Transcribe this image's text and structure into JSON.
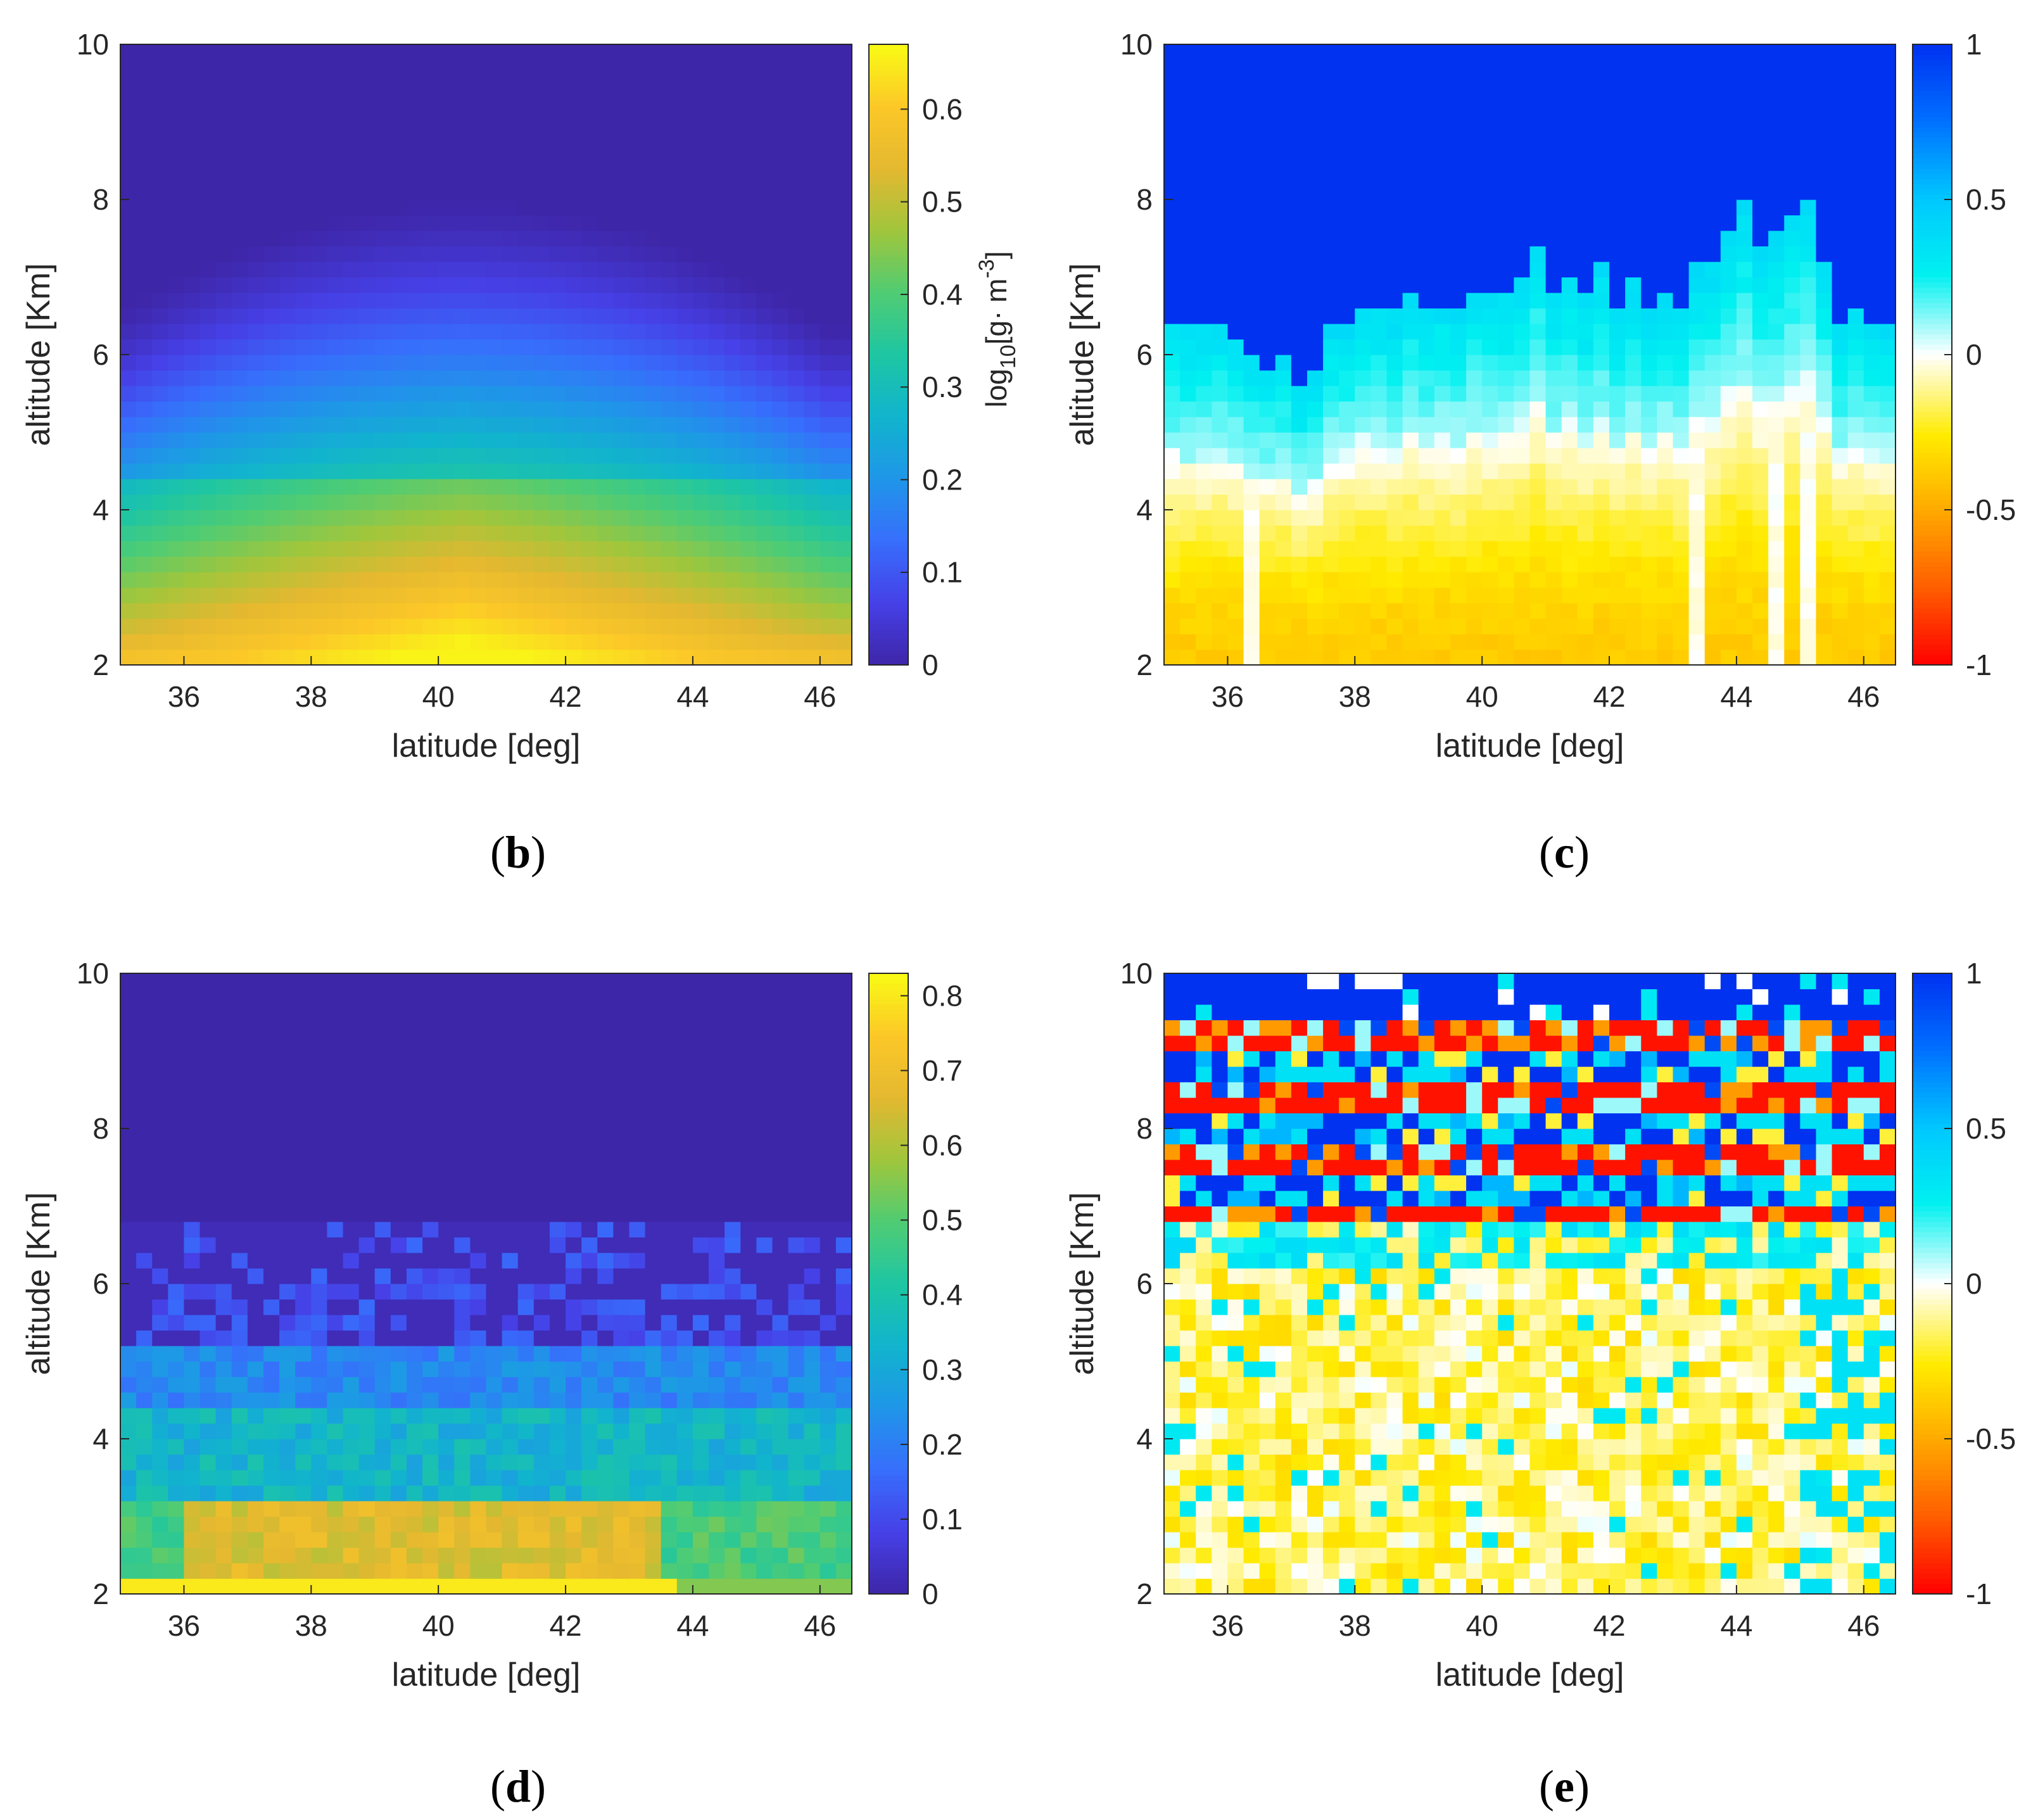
{
  "figure": {
    "colors": {
      "text": "#262626",
      "axis": "#262626",
      "background": "#ffffff"
    }
  },
  "chart_data": [
    {
      "id": "b",
      "type": "heatmap",
      "caption_letter": "b",
      "xlabel": "latitude [deg]",
      "ylabel": "altitude [Km]",
      "xlim": [
        35,
        46.5
      ],
      "ylim": [
        2,
        10
      ],
      "xticks": [
        "36",
        "38",
        "40",
        "42",
        "44",
        "46"
      ],
      "yticks": [
        "2",
        "4",
        "6",
        "8",
        "10"
      ],
      "grid": {
        "cols": 46,
        "rows": 40
      },
      "field": "dome",
      "field_params": {
        "center_lat": 40.4,
        "peak": 0.66,
        "top_alt_center": 8.0,
        "top_alt_edge": 6.4,
        "roughness": 0.0
      },
      "colormap": "parula",
      "colorbar": {
        "range": [
          0,
          0.67
        ],
        "ticks": [
          "0",
          "0.1",
          "0.2",
          "0.3",
          "0.4",
          "0.5",
          "0.6"
        ],
        "title": "log10[g· m-3]",
        "title_parts": {
          "base": "log",
          "sub": "10",
          "mid": "[g· m",
          "sup": "-3",
          "end": "]"
        }
      }
    },
    {
      "id": "c",
      "type": "heatmap",
      "caption_letter": "c",
      "xlabel": "latitude [deg]",
      "ylabel": "altitude [Km]",
      "xlim": [
        35,
        46.5
      ],
      "ylim": [
        2,
        10
      ],
      "xticks": [
        "36",
        "38",
        "40",
        "42",
        "44",
        "46"
      ],
      "yticks": [
        "2",
        "4",
        "6",
        "8",
        "10"
      ],
      "grid": {
        "cols": 46,
        "rows": 40
      },
      "field": "correlation_smooth",
      "field_params": {
        "top_value": 1.0,
        "bottom_value": -0.38,
        "cloud_top": [
          6.4,
          6.3,
          6.3,
          6.4,
          6.2,
          6.0,
          5.9,
          6.0,
          5.6,
          5.8,
          6.3,
          6.4,
          6.7,
          6.6,
          6.5,
          6.8,
          6.6,
          6.7,
          6.6,
          6.9,
          6.8,
          6.8,
          7.0,
          7.5,
          6.8,
          7.0,
          6.7,
          7.1,
          6.6,
          6.9,
          6.6,
          6.8,
          6.6,
          7.1,
          7.2,
          7.6,
          7.9,
          7.4,
          7.5,
          7.8,
          8.0,
          7.2,
          6.4,
          6.6,
          6.4,
          6.4
        ]
      },
      "colormap": "diverging",
      "colorbar": {
        "range": [
          -1,
          1
        ],
        "ticks": [
          "-1",
          "-0.5",
          "0",
          "0.5",
          "1"
        ],
        "title": ""
      }
    },
    {
      "id": "d",
      "type": "heatmap",
      "caption_letter": "d",
      "xlabel": "latitude [deg]",
      "ylabel": "altitude [Km]",
      "xlim": [
        35,
        46.5
      ],
      "ylim": [
        2,
        10
      ],
      "xticks": [
        "36",
        "38",
        "40",
        "42",
        "44",
        "46"
      ],
      "yticks": [
        "2",
        "4",
        "6",
        "8",
        "10"
      ],
      "grid": {
        "cols": 46,
        "rows": 40
      },
      "field": "layered_noisy",
      "field_params": {
        "surface_value": 0.8,
        "band_3km": 0.66,
        "band_4km": 0.34,
        "band_5km": 0.22,
        "band_6km": 0.12,
        "cutoff_alt": 6.8
      },
      "colormap": "parula",
      "colorbar": {
        "range": [
          0,
          0.83
        ],
        "ticks": [
          "0",
          "0.1",
          "0.2",
          "0.3",
          "0.4",
          "0.5",
          "0.6",
          "0.7",
          "0.8"
        ],
        "title": ""
      }
    },
    {
      "id": "e",
      "type": "heatmap",
      "caption_letter": "e",
      "xlabel": "latitude [deg]",
      "ylabel": "altitude [Km]",
      "xlim": [
        35,
        46.5
      ],
      "ylim": [
        2,
        10
      ],
      "xticks": [
        "36",
        "38",
        "40",
        "42",
        "44",
        "46"
      ],
      "yticks": [
        "2",
        "4",
        "6",
        "8",
        "10"
      ],
      "grid": {
        "cols": 46,
        "rows": 40
      },
      "field": "correlation_noisy",
      "field_params": {
        "red_stripes_alt": [
          9.2,
          8.4,
          7.6,
          6.9
        ],
        "mean_low": -0.15,
        "noise": 0.35
      },
      "colormap": "diverging",
      "colorbar": {
        "range": [
          -1,
          1
        ],
        "ticks": [
          "-1",
          "-0.5",
          "0",
          "0.5",
          "1"
        ],
        "title": ""
      }
    }
  ]
}
